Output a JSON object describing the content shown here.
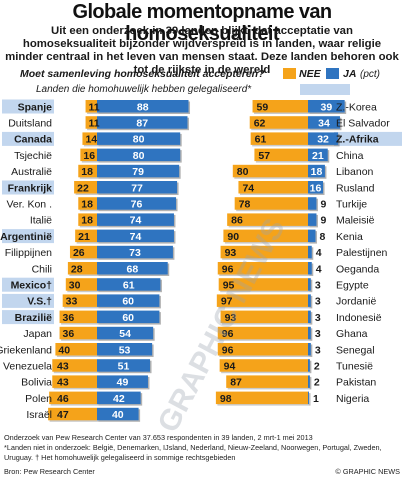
{
  "title": "Globale momentopname van homoseksualiteit",
  "subtitle": "Uit een onderzoek in 39 landen blijkt, dat acceptatie van homoseksualiteit bijzonder wijdverspreid is in landen, waar religie minder centraal in het leven van mensen staat. Deze landen behoren ook tot de rijkste in de wereld",
  "footnotes": [
    "Onderzoek van Pew Research Center van 37.653 respondenten in 39 landen, 2 mrt-1 mei 2013",
    "*Landen niet in onderzoek: België, Denemarken, IJsland, Nederland, Nieuw-Zeeland, Noorwegen, Portugal, Zweden, Uruguay. † Het homohuwelijk gelegaliseerd in sommige rechtsgebieden"
  ],
  "source": "Bron: Pew Research Center",
  "credit": "© GRAPHIC NEWS",
  "watermark": "GRAPHIC NEWS",
  "colors": {
    "nee": "#f5a31a",
    "ja": "#2f74c0",
    "legal_highlight": "#c2d6ee",
    "text": "#1a1a1a"
  },
  "chart_data": {
    "type": "bar",
    "question": "Moet samenleving homoseksualiteit accepteren?",
    "legal_legend": "Landen die  homohuwelijk hebben gelegaliseerd*",
    "legend": {
      "nee": "NEE",
      "ja": "JA",
      "unit": "(pct)"
    },
    "left_panel": {
      "countries": [
        "Spanje",
        "Duitsland",
        "Canada",
        "Tsjechië",
        "Australië",
        "Frankrijk",
        "Ver. Kon .",
        "Italië",
        "Argentinië",
        "Filippijnen",
        "Chili",
        "Mexico†",
        "V.S.†",
        "Brazilië",
        "Japan",
        "Griekenland",
        "Venezuela",
        "Bolivia",
        "Polen",
        "Israël"
      ],
      "nee": [
        11,
        11,
        14,
        16,
        18,
        22,
        18,
        18,
        21,
        26,
        28,
        30,
        33,
        36,
        36,
        40,
        43,
        43,
        46,
        47
      ],
      "ja": [
        88,
        87,
        80,
        80,
        79,
        77,
        76,
        74,
        74,
        73,
        68,
        61,
        60,
        60,
        54,
        53,
        51,
        49,
        42,
        40
      ],
      "legalized": [
        true,
        false,
        true,
        false,
        false,
        true,
        false,
        false,
        true,
        false,
        false,
        true,
        true,
        true,
        false,
        false,
        false,
        false,
        false,
        false
      ]
    },
    "right_panel": {
      "countries": [
        "Z.-Korea",
        "El Salvador",
        "Z.-Afrika",
        "China",
        "Libanon",
        "Rusland",
        "Turkije",
        "Maleisië",
        "Kenia",
        "Palestijnen",
        "Oeganda",
        "Egypte",
        "Jordanië",
        "Indonesië",
        "Ghana",
        "Senegal",
        "Tunesië",
        "Pakistan",
        "Nigeria"
      ],
      "nee": [
        59,
        62,
        61,
        57,
        80,
        74,
        78,
        86,
        90,
        93,
        96,
        95,
        97,
        93,
        96,
        96,
        94,
        87,
        98
      ],
      "ja": [
        39,
        34,
        32,
        21,
        18,
        16,
        9,
        9,
        8,
        4,
        4,
        3,
        3,
        3,
        3,
        3,
        2,
        2,
        1
      ],
      "legalized": [
        false,
        false,
        true,
        false,
        false,
        false,
        false,
        false,
        false,
        false,
        false,
        false,
        false,
        false,
        false,
        false,
        false,
        false,
        false
      ]
    }
  }
}
